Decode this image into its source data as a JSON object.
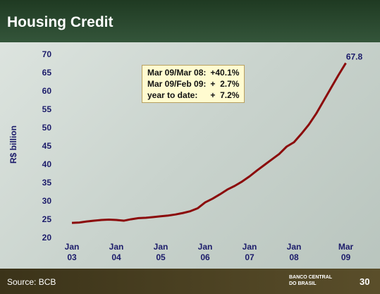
{
  "header": {
    "title": "Housing Credit"
  },
  "footer": {
    "source": "Source: BCB",
    "logo": "BANCO CENTRAL DO BRASIL",
    "page": "30"
  },
  "chart_data": {
    "type": "line",
    "ylabel": "R$ billion",
    "categories": [
      "Jan 03",
      null,
      null,
      null,
      null,
      null,
      "Jan 04",
      null,
      null,
      null,
      null,
      null,
      "Jan 05",
      null,
      null,
      null,
      null,
      null,
      "Jan 06",
      null,
      null,
      null,
      null,
      null,
      "Jan 07",
      null,
      null,
      null,
      null,
      null,
      "Jan 08",
      null,
      null,
      null,
      null,
      null,
      null,
      "Mar 09"
    ],
    "series": [
      {
        "name": "Housing Credit",
        "color": "#8b0a0a",
        "values": [
          24.2,
          24.3,
          24.6,
          24.8,
          25.0,
          25.1,
          25.0,
          24.8,
          25.2,
          25.5,
          25.6,
          25.8,
          26.0,
          26.2,
          26.5,
          26.9,
          27.4,
          28.2,
          29.8,
          30.8,
          32.0,
          33.3,
          34.3,
          35.5,
          36.9,
          38.5,
          40.0,
          41.5,
          43.0,
          45.0,
          46.2,
          48.5,
          51.0,
          54.0,
          57.5,
          61.0,
          64.5,
          67.8
        ],
        "value_labels": [
          null,
          null,
          null,
          null,
          null,
          null,
          null,
          null,
          null,
          null,
          null,
          null,
          null,
          null,
          null,
          null,
          null,
          null,
          null,
          null,
          null,
          null,
          null,
          null,
          null,
          null,
          null,
          null,
          null,
          null,
          null,
          null,
          null,
          null,
          null,
          null,
          null,
          "67.8"
        ]
      }
    ],
    "ylim": [
      20,
      70
    ],
    "yticks": [
      20,
      25,
      30,
      35,
      40,
      45,
      50,
      55,
      60,
      65,
      70
    ],
    "grid": false,
    "annotation": [
      [
        "Mar 09/Mar 08:",
        "+40.1%"
      ],
      [
        "Mar 09/Feb 09:",
        "+  2.7%"
      ],
      [
        "year to date:",
        "+  7.2%"
      ]
    ]
  }
}
